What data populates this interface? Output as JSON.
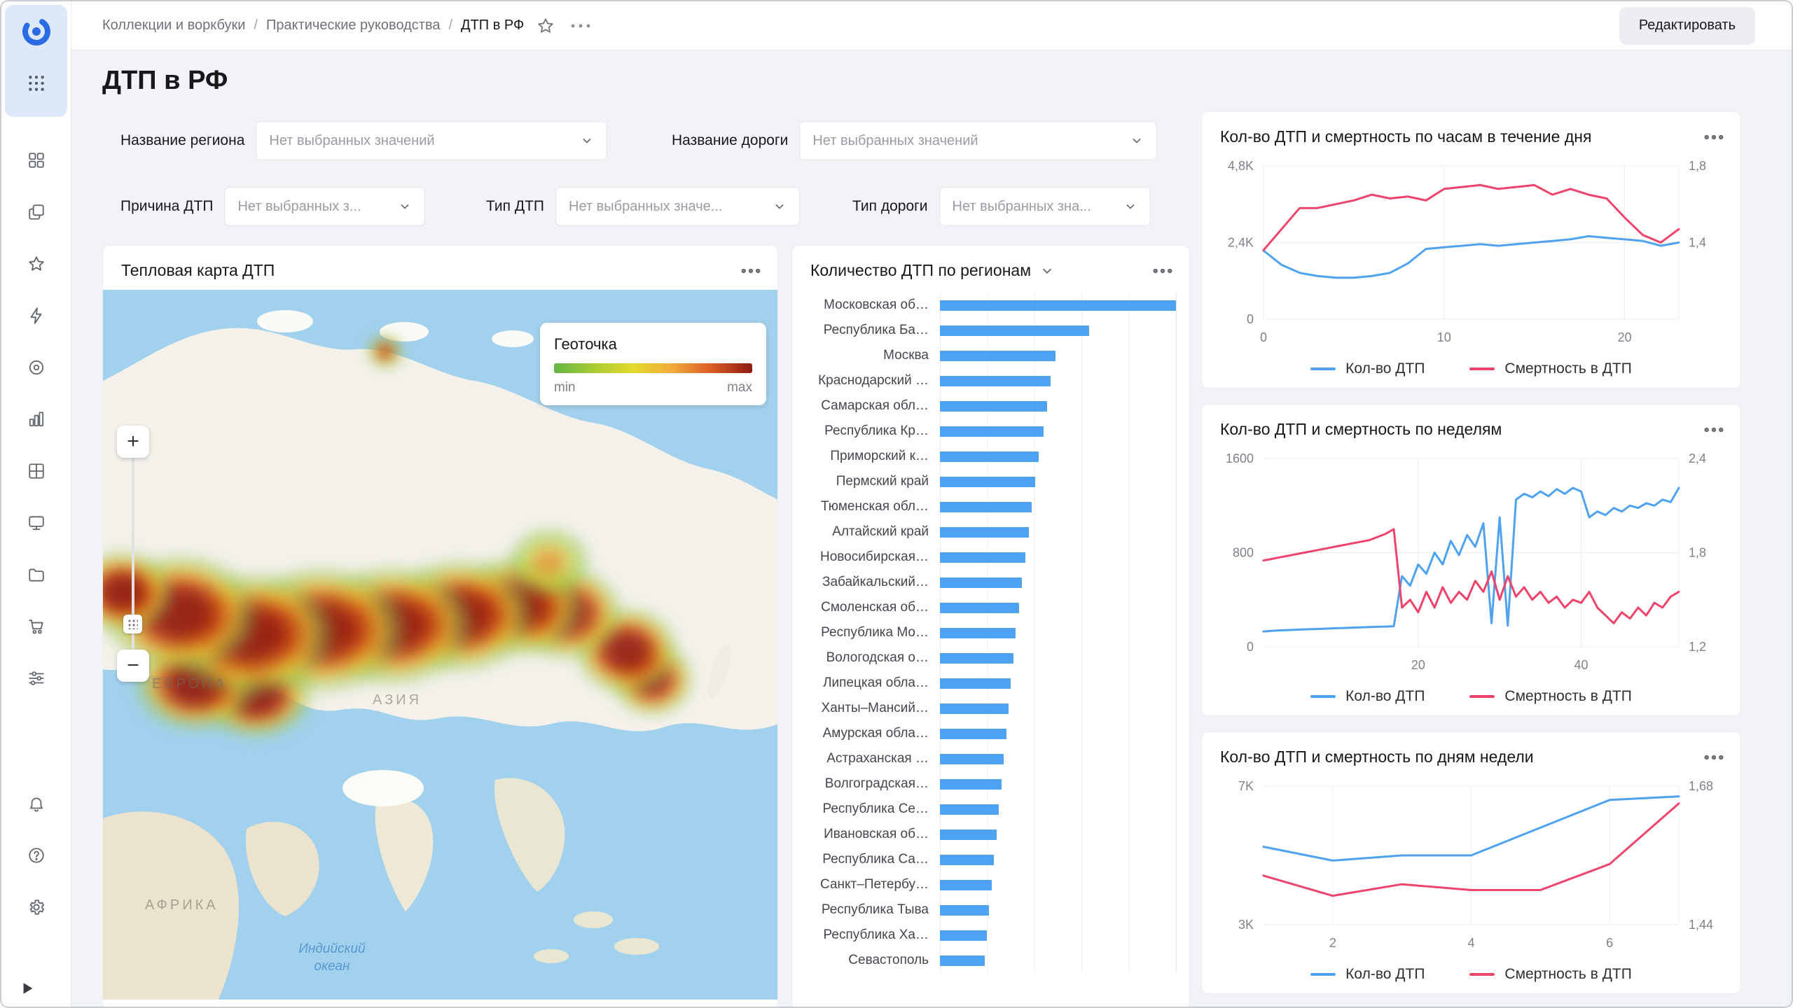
{
  "header": {
    "breadcrumbs": [
      "Коллекции и воркбуки",
      "Практические руководства",
      "ДТП в РФ"
    ],
    "edit_button": "Редактировать"
  },
  "page": {
    "title": "ДТП в РФ"
  },
  "filters": [
    {
      "label": "Название региона",
      "placeholder": "Нет выбранных значений"
    },
    {
      "label": "Название дороги",
      "placeholder": "Нет выбранных значений"
    },
    {
      "label": "Причина ДТП",
      "placeholder": "Нет выбранных з..."
    },
    {
      "label": "Тип ДТП",
      "placeholder": "Нет выбранных значе..."
    },
    {
      "label": "Тип дороги",
      "placeholder": "Нет выбранных зна..."
    }
  ],
  "cards": {
    "map": {
      "title": "Тепловая карта ДТП"
    },
    "regions": {
      "title": "Количество ДТП по регионам"
    },
    "hours": {
      "title": "Кол-во ДТП и смертность по часам в течение дня"
    },
    "weeks": {
      "title": "Кол-во ДТП и смертность по неделям"
    },
    "days": {
      "title": "Кол-во ДТП и смертность по дням недели"
    }
  },
  "map": {
    "legend": {
      "title": "Геоточка",
      "min": "min",
      "max": "max"
    },
    "labels": {
      "europe": "ЕВРОПА",
      "asia": "АЗИЯ",
      "africa": "АФРИКА",
      "ocean": "Индийский океан"
    },
    "zoom_in": "+",
    "zoom_out": "−"
  },
  "colors": {
    "accent_blue": "#4da2f2",
    "line_red": "#f0436b",
    "heat_min": "#63b544",
    "heat_max": "#8b1a10"
  },
  "sidebar_icons": [
    "datalens-logo",
    "apps-grid",
    "widgets",
    "collections",
    "favorites",
    "lightning",
    "connections",
    "charts",
    "datasets",
    "dashboards",
    "storage",
    "marketplace",
    "services",
    "bell",
    "help",
    "gear",
    "expand"
  ],
  "chart_data": [
    {
      "id": "by_region",
      "type": "bar",
      "orientation": "horizontal",
      "title": "Количество ДТП по регионам",
      "categories": [
        "Московская об…",
        "Республика Ба…",
        "Москва",
        "Краснодарский …",
        "Самарская обл…",
        "Республика Кр…",
        "Приморский к…",
        "Пермский край",
        "Тюменская обл…",
        "Алтайский край",
        "Новосибирская…",
        "Забайкальский…",
        "Смоленская об…",
        "Республика Мо…",
        "Вологодская о…",
        "Липецкая обла…",
        "Ханты–Мансий…",
        "Амурская обла…",
        "Астраханская …",
        "Волгоградская…",
        "Республика Се…",
        "Ивановская об…",
        "Республика Са…",
        "Санкт–Петербу…",
        "Республика Тыва",
        "Республика Ха…",
        "Севастополь"
      ],
      "values": [
        9800,
        6200,
        4800,
        4600,
        4450,
        4300,
        4100,
        3950,
        3800,
        3700,
        3550,
        3400,
        3300,
        3150,
        3050,
        2950,
        2850,
        2750,
        2650,
        2550,
        2450,
        2350,
        2250,
        2150,
        2050,
        1950,
        1850
      ],
      "color": "#4da2f2"
    },
    {
      "id": "by_hour",
      "type": "line",
      "title": "Кол-во ДТП и смертность по часам в течение дня",
      "x": [
        0,
        1,
        2,
        3,
        4,
        5,
        6,
        7,
        8,
        9,
        10,
        11,
        12,
        13,
        14,
        15,
        16,
        17,
        18,
        19,
        20,
        21,
        22,
        23
      ],
      "x_ticks": [
        {
          "v": 0,
          "l": "0"
        },
        {
          "v": 10,
          "l": "10"
        },
        {
          "v": 20,
          "l": "20"
        }
      ],
      "left_axis": {
        "min": 0,
        "max": 4800,
        "ticks": [
          {
            "v": 0,
            "l": "0"
          },
          {
            "v": 2400,
            "l": "2,4K"
          },
          {
            "v": 4800,
            "l": "4,8K"
          }
        ]
      },
      "right_axis": {
        "min": 1.0,
        "max": 1.8,
        "ticks": [
          {
            "v": 1.4,
            "l": "1,4"
          },
          {
            "v": 1.8,
            "l": "1,8"
          }
        ]
      },
      "series": [
        {
          "name": "Кол-во ДТП",
          "axis": "left",
          "color": "#4da2f2",
          "values": [
            2150,
            1700,
            1450,
            1350,
            1300,
            1300,
            1350,
            1450,
            1750,
            2200,
            2250,
            2300,
            2350,
            2300,
            2350,
            2400,
            2450,
            2500,
            2600,
            2550,
            2500,
            2450,
            2300,
            2400
          ]
        },
        {
          "name": "Смертность в ДТП",
          "axis": "right",
          "color": "#f0436b",
          "values": [
            1.36,
            1.47,
            1.58,
            1.58,
            1.6,
            1.62,
            1.65,
            1.63,
            1.64,
            1.62,
            1.68,
            1.69,
            1.7,
            1.68,
            1.69,
            1.7,
            1.65,
            1.68,
            1.65,
            1.63,
            1.53,
            1.44,
            1.4,
            1.47
          ]
        }
      ]
    },
    {
      "id": "by_week",
      "type": "line",
      "title": "Кол-во ДТП и смертность по неделям",
      "x": [
        1,
        2,
        3,
        4,
        5,
        6,
        7,
        8,
        9,
        10,
        11,
        12,
        13,
        14,
        15,
        16,
        17,
        18,
        19,
        20,
        21,
        22,
        23,
        24,
        25,
        26,
        27,
        28,
        29,
        30,
        31,
        32,
        33,
        34,
        35,
        36,
        37,
        38,
        39,
        40,
        41,
        42,
        43,
        44,
        45,
        46,
        47,
        48,
        49,
        50,
        51,
        52
      ],
      "x_ticks": [
        {
          "v": 20,
          "l": "20"
        },
        {
          "v": 40,
          "l": "40"
        }
      ],
      "left_axis": {
        "min": 0,
        "max": 1600,
        "ticks": [
          {
            "v": 0,
            "l": "0"
          },
          {
            "v": 800,
            "l": "800"
          },
          {
            "v": 1600,
            "l": "1600"
          }
        ]
      },
      "right_axis": {
        "min": 1.2,
        "max": 2.4,
        "ticks": [
          {
            "v": 1.2,
            "l": "1,2"
          },
          {
            "v": 1.8,
            "l": "1,8"
          },
          {
            "v": 2.4,
            "l": "2,4"
          }
        ]
      },
      "series": [
        {
          "name": "Кол-во ДТП",
          "axis": "left",
          "color": "#4da2f2",
          "values": [
            130,
            135,
            140,
            142,
            145,
            148,
            150,
            152,
            155,
            158,
            160,
            163,
            165,
            168,
            170,
            172,
            175,
            600,
            520,
            700,
            620,
            800,
            700,
            900,
            780,
            950,
            850,
            1050,
            200,
            1100,
            180,
            1250,
            1300,
            1270,
            1320,
            1280,
            1340,
            1300,
            1350,
            1320,
            1100,
            1150,
            1120,
            1180,
            1150,
            1200,
            1180,
            1220,
            1200,
            1250,
            1230,
            1350
          ]
        },
        {
          "name": "Смертность в ДТП",
          "axis": "right",
          "color": "#f0436b",
          "values": [
            1.75,
            1.76,
            1.77,
            1.78,
            1.79,
            1.8,
            1.81,
            1.82,
            1.83,
            1.84,
            1.85,
            1.86,
            1.87,
            1.88,
            1.9,
            1.92,
            1.95,
            1.45,
            1.5,
            1.42,
            1.55,
            1.45,
            1.58,
            1.48,
            1.55,
            1.5,
            1.62,
            1.55,
            1.68,
            1.5,
            1.65,
            1.52,
            1.58,
            1.5,
            1.55,
            1.48,
            1.52,
            1.45,
            1.5,
            1.48,
            1.55,
            1.45,
            1.4,
            1.35,
            1.42,
            1.38,
            1.45,
            1.4,
            1.48,
            1.45,
            1.52,
            1.55
          ]
        }
      ]
    },
    {
      "id": "by_day",
      "type": "line",
      "title": "Кол-во ДТП и смертность по дням недели",
      "x": [
        1,
        2,
        3,
        4,
        5,
        6,
        7
      ],
      "x_ticks": [
        {
          "v": 2,
          "l": "2"
        },
        {
          "v": 4,
          "l": "4"
        },
        {
          "v": 6,
          "l": "6"
        }
      ],
      "left_axis": {
        "min": 3000,
        "max": 7000,
        "ticks": [
          {
            "v": 3000,
            "l": "3K"
          },
          {
            "v": 7000,
            "l": "7K"
          }
        ]
      },
      "right_axis": {
        "min": 1.44,
        "max": 1.68,
        "ticks": [
          {
            "v": 1.44,
            "l": "1,44"
          },
          {
            "v": 1.68,
            "l": "1,68"
          }
        ]
      },
      "series": [
        {
          "name": "Кол-во ДТП",
          "axis": "left",
          "color": "#4da2f2",
          "values": [
            5250,
            4850,
            5000,
            5000,
            5800,
            6600,
            6700
          ]
        },
        {
          "name": "Смертность в ДТП",
          "axis": "right",
          "color": "#f0436b",
          "values": [
            1.525,
            1.49,
            1.51,
            1.5,
            1.5,
            1.545,
            1.65
          ]
        }
      ]
    }
  ]
}
